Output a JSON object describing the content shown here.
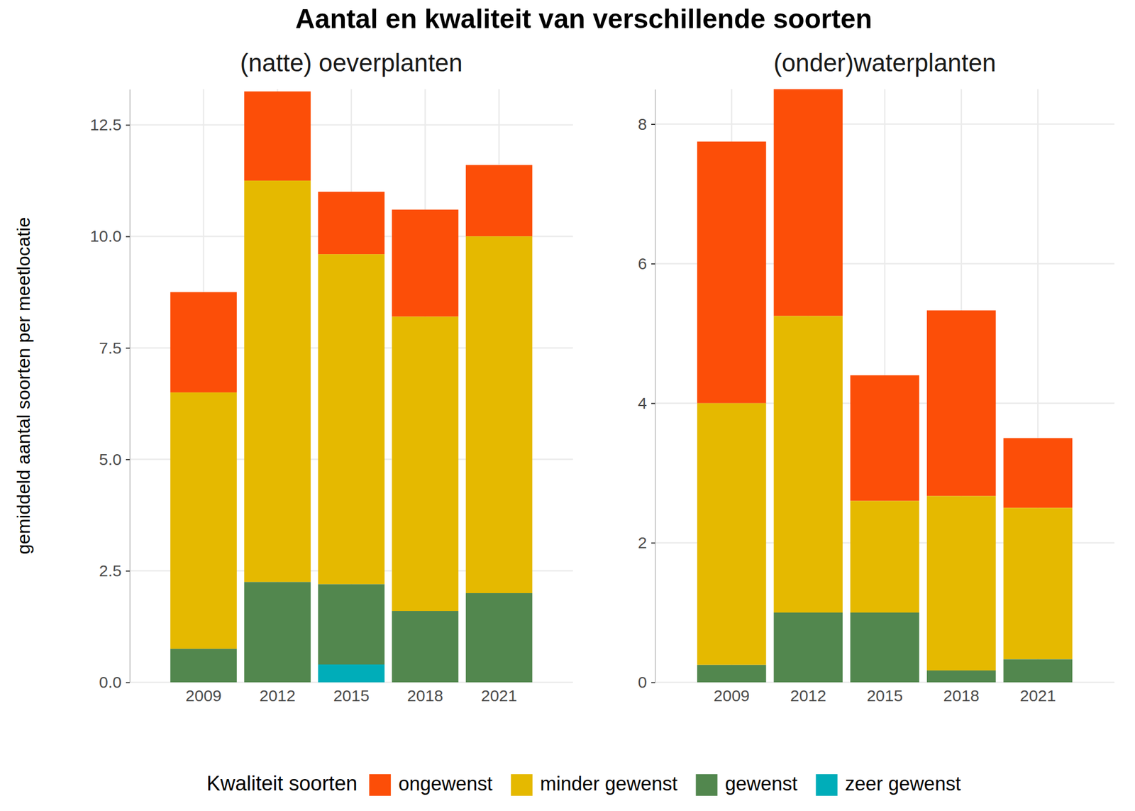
{
  "chart_data": {
    "type": "bar",
    "stacked": true,
    "grid": true,
    "legend": "bottom",
    "title": "Aantal en kwaliteit van verschillende soorten",
    "y_label": "gemiddeld aantal soorten per meetlocatie",
    "legend_title": "Kwaliteit soorten",
    "categories": [
      "2009",
      "2012",
      "2015",
      "2018",
      "2021"
    ],
    "series": [
      {
        "name": "ongewenst",
        "color": "#fc4e08"
      },
      {
        "name": "minder gewenst",
        "color": "#e5b900"
      },
      {
        "name": "gewenst",
        "color": "#52874e"
      },
      {
        "name": "zeer gewenst",
        "color": "#00adb9"
      }
    ],
    "panels": [
      {
        "subtitle": "(natte) oeverplanten",
        "ylim": [
          0,
          13.3
        ],
        "yticks": [
          {
            "value": 0,
            "label": "0.0"
          },
          2.5,
          {
            "value": 5,
            "label": "5.0"
          },
          7.5,
          {
            "value": 10,
            "label": "10.0"
          },
          12.5
        ],
        "values": [
          [
            2.25,
            2.0,
            1.4,
            2.4,
            1.6
          ],
          [
            5.75,
            9.0,
            7.4,
            6.6,
            8.0
          ],
          [
            0.75,
            2.25,
            1.8,
            1.6,
            2.0
          ],
          [
            0,
            0,
            0.4,
            0,
            0
          ]
        ]
      },
      {
        "subtitle": "(onder)waterplanten",
        "ylim": [
          0,
          8.5
        ],
        "yticks": [
          0,
          2,
          4,
          6,
          8
        ],
        "values": [
          [
            3.75,
            3.25,
            1.8,
            2.66,
            1.0
          ],
          [
            3.75,
            4.25,
            1.6,
            2.5,
            2.17
          ],
          [
            0.25,
            1.0,
            1.0,
            0.17,
            0.33
          ],
          [
            0,
            0,
            0,
            0,
            0
          ]
        ]
      }
    ]
  }
}
